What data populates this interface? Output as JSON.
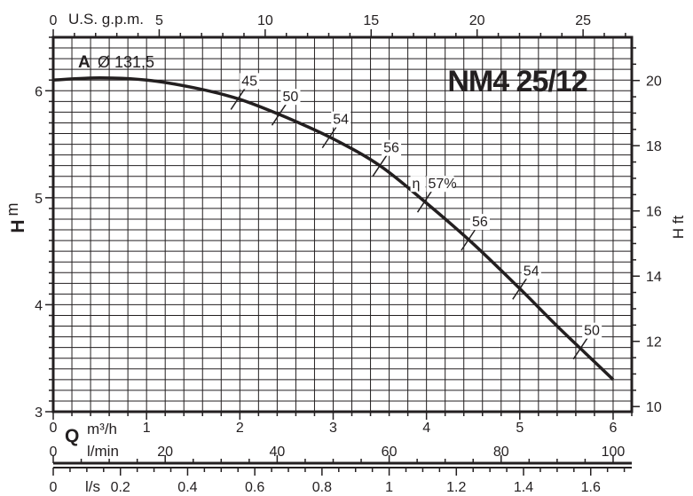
{
  "chart_data": {
    "type": "line",
    "title": "NM4 25/12",
    "curve_label": "A",
    "impeller_diameter_label": "Ø 131,5",
    "efficiency_symbol": "η",
    "ylabel_left_letter": "H",
    "ylabel_left_unit": "m",
    "ylabel_right": "H ft",
    "xlabel_gpm": "U.S. g.p.m.",
    "xlabel_q_letter": "Q",
    "xlabel_m3h": "m³/h",
    "xlabel_lmin": "l/min",
    "xlabel_ls": "l/s",
    "xlim_m3h": [
      0,
      6.2
    ],
    "ylim_m": [
      3,
      6.5
    ],
    "grid": true,
    "ticks": {
      "m3h": [
        "0",
        "1",
        "2",
        "3",
        "4",
        "5",
        "6"
      ],
      "gpm": [
        "0",
        "5",
        "10",
        "15",
        "20",
        "25"
      ],
      "lmin": [
        "0",
        "20",
        "40",
        "60",
        "80",
        "100"
      ],
      "ls": [
        "0",
        "0.2",
        "0.4",
        "0.6",
        "0.8",
        "1",
        "1.2",
        "1.4",
        "1.6"
      ],
      "h_m": [
        "3",
        "4",
        "5",
        "6"
      ],
      "h_ft": [
        "10",
        "12",
        "14",
        "16",
        "18",
        "20"
      ]
    },
    "series": [
      {
        "x": [
          0,
          0.5,
          1.0,
          1.5,
          2.0,
          2.5,
          3.0,
          3.5,
          4.0,
          4.5,
          5.0,
          5.4,
          5.7,
          6.0
        ],
        "y": [
          6.1,
          6.12,
          6.1,
          6.03,
          5.92,
          5.75,
          5.55,
          5.3,
          4.95,
          4.57,
          4.15,
          3.8,
          3.55,
          3.3
        ]
      }
    ],
    "efficiency_points": [
      {
        "x": 1.98,
        "label": "45"
      },
      {
        "x": 2.42,
        "label": "50"
      },
      {
        "x": 2.96,
        "label": "54"
      },
      {
        "x": 3.5,
        "label": "56"
      },
      {
        "x": 3.98,
        "label": "57%"
      },
      {
        "x": 4.45,
        "label": "56"
      },
      {
        "x": 5.0,
        "label": "54"
      },
      {
        "x": 5.65,
        "label": "50"
      }
    ]
  }
}
